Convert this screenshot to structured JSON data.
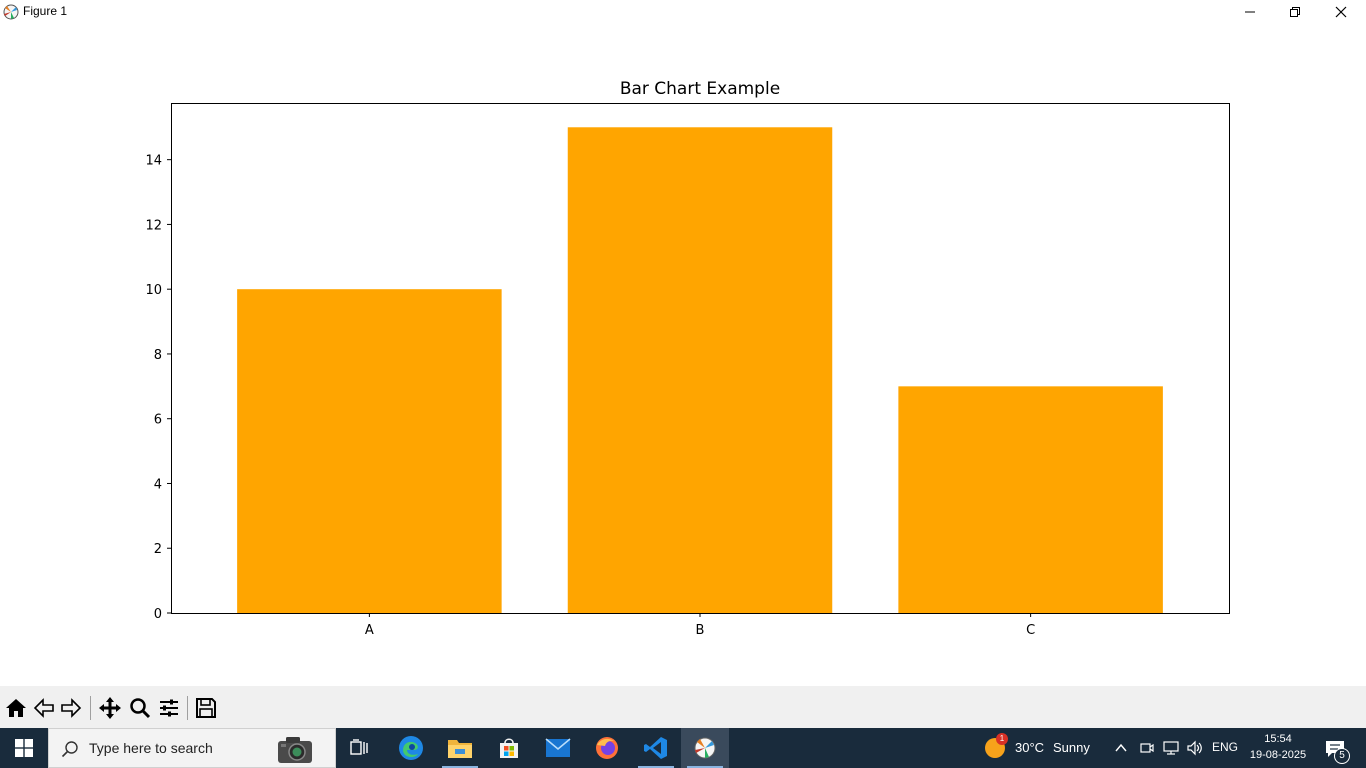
{
  "window": {
    "title": "Figure 1"
  },
  "chart_data": {
    "type": "bar",
    "title": "Bar Chart Example",
    "categories": [
      "A",
      "B",
      "C"
    ],
    "values": [
      10,
      15,
      7
    ],
    "color": "#ffa500",
    "xlabel": "",
    "ylabel": "",
    "ylim": [
      0,
      15.75
    ],
    "yticks": [
      0,
      2,
      4,
      6,
      8,
      10,
      12,
      14
    ],
    "grid": false
  },
  "toolbar": {
    "buttons": [
      "home-icon",
      "back-icon",
      "forward-icon",
      "pan-icon",
      "zoom-icon",
      "configure-subplots-icon",
      "save-icon"
    ]
  },
  "taskbar": {
    "search_placeholder": "Type here to search",
    "weather_temp": "30°C",
    "weather_text": "Sunny",
    "weather_badge": "1",
    "language": "ENG",
    "time": "15:54",
    "date": "19-08-2025",
    "notification_count": "5"
  }
}
